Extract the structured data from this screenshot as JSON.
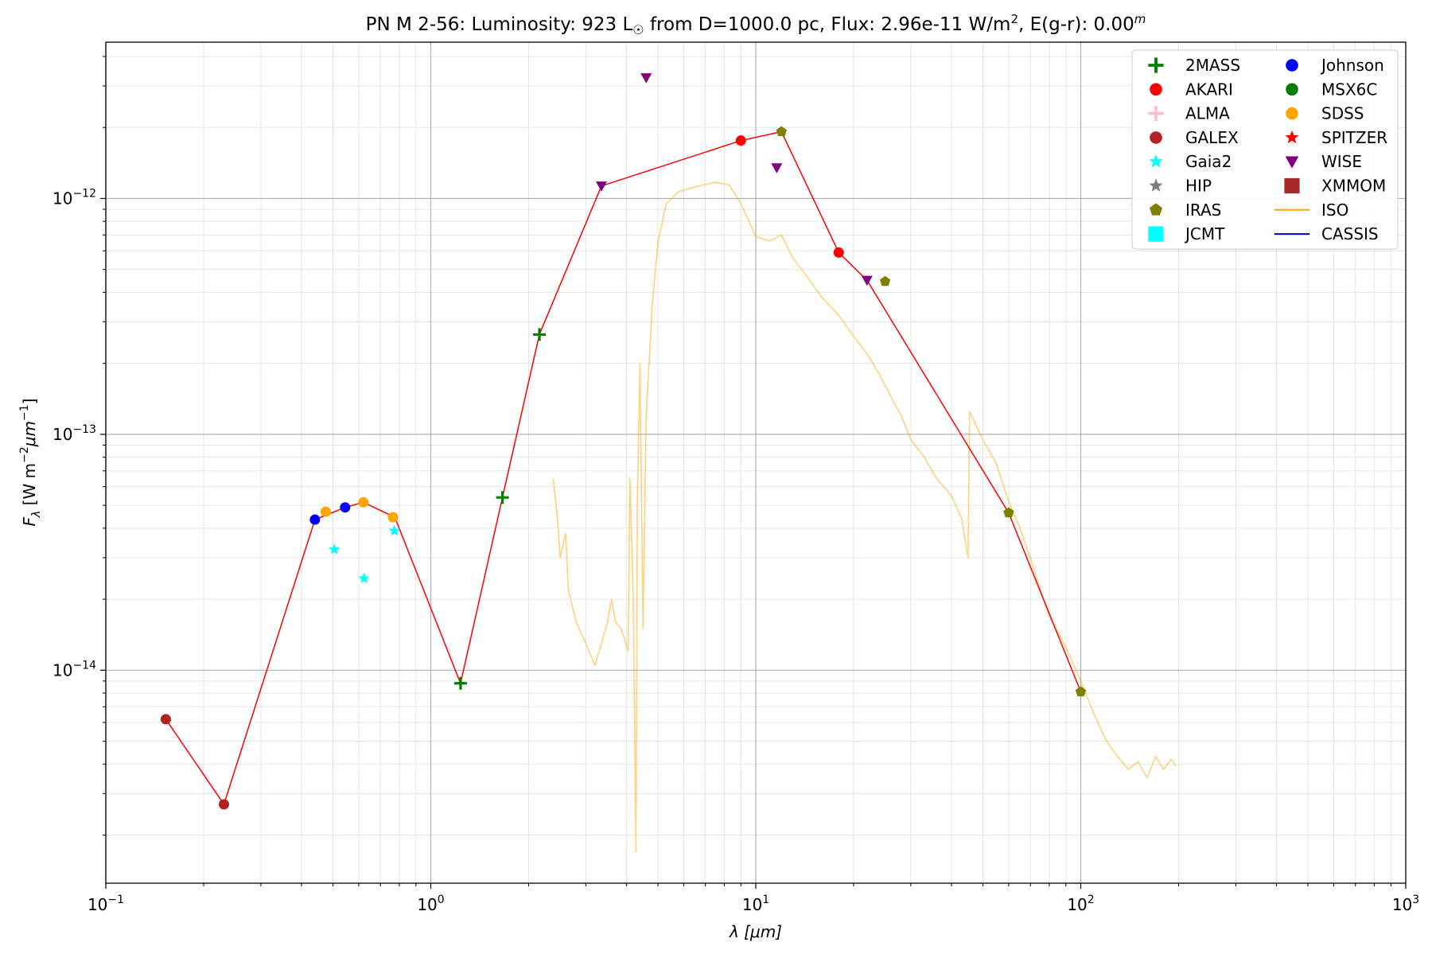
{
  "chart_data": {
    "type": "scatter",
    "title_main": "PN M 2-56:  Luminosity: 923 L",
    "title_sun": "☉",
    "title_flux": " from D=1000.0 pc, Flux: 2.96e-11 W/m",
    "title_sq": "2",
    "title_egr": ", E(g-r): 0.00",
    "title_m": "m",
    "xlabel": "λ [μm]",
    "ylabel": "F_λ [W m^-2 μm^-1]",
    "ylabel_parts": {
      "f": "F",
      "lam": "λ",
      "a": " [W m",
      "e1": "−2",
      "b": "μm",
      "e2": "−1",
      "c": "]"
    },
    "xscale": "log",
    "yscale": "log",
    "xlim": [
      0.1,
      1000
    ],
    "ylim": [
      1.25e-15,
      4.6e-12
    ],
    "grid": true,
    "legend_position": "top-right",
    "x_ticks": [
      {
        "value": 0.1,
        "base": "10",
        "exp": "−1"
      },
      {
        "value": 1,
        "base": "10",
        "exp": "0"
      },
      {
        "value": 10,
        "base": "10",
        "exp": "1"
      },
      {
        "value": 100,
        "base": "10",
        "exp": "2"
      },
      {
        "value": 1000,
        "base": "10",
        "exp": "3"
      }
    ],
    "y_ticks": [
      {
        "value": 1e-14,
        "base": "10",
        "exp": "−14"
      },
      {
        "value": 1e-13,
        "base": "10",
        "exp": "−13"
      },
      {
        "value": 1e-12,
        "base": "10",
        "exp": "−12"
      }
    ],
    "sed_line": {
      "color": "#ff0000",
      "points": [
        [
          0.153,
          6.2e-15
        ],
        [
          0.231,
          2.7e-15
        ],
        [
          0.44,
          4.35e-14
        ],
        [
          0.545,
          4.9e-14
        ],
        [
          0.62,
          5.15e-14
        ],
        [
          0.775,
          4.45e-14
        ],
        [
          1.235,
          8.8e-15
        ],
        [
          1.662,
          5.4e-14
        ],
        [
          2.159,
          2.65e-13
        ],
        [
          3.35,
          1.13e-12
        ],
        [
          9.0,
          1.76e-12
        ],
        [
          12.0,
          1.92e-12
        ],
        [
          18.0,
          5.9e-13
        ],
        [
          22.0,
          4.5e-13
        ],
        [
          60.0,
          4.65e-14
        ],
        [
          100.0,
          8.1e-15
        ]
      ]
    },
    "series": [
      {
        "name": "2MASS",
        "marker": "plus",
        "color": "#008000",
        "points": [
          [
            1.235,
            8.8e-15
          ],
          [
            1.662,
            5.4e-14
          ],
          [
            2.159,
            2.65e-13
          ]
        ]
      },
      {
        "name": "AKARI",
        "marker": "circle",
        "color": "#ff0000",
        "points": [
          [
            9.0,
            1.76e-12
          ],
          [
            18.0,
            5.9e-13
          ]
        ]
      },
      {
        "name": "ALMA",
        "marker": "plus",
        "color": "#ffc0cb",
        "points": []
      },
      {
        "name": "GALEX",
        "marker": "circle",
        "color": "#b22222",
        "points": [
          [
            0.153,
            6.2e-15
          ],
          [
            0.231,
            2.7e-15
          ]
        ]
      },
      {
        "name": "Gaia2",
        "marker": "star",
        "color": "#00ffff",
        "points": [
          [
            0.505,
            3.25e-14
          ],
          [
            0.623,
            2.45e-14
          ],
          [
            0.772,
            3.9e-14
          ]
        ]
      },
      {
        "name": "HIP",
        "marker": "star",
        "color": "#808080",
        "points": []
      },
      {
        "name": "IRAS",
        "marker": "pentagon",
        "color": "#808000",
        "points": [
          [
            12.0,
            1.92e-12
          ],
          [
            25.0,
            4.45e-13
          ],
          [
            60.0,
            4.65e-14
          ],
          [
            100.0,
            8.1e-15
          ]
        ]
      },
      {
        "name": "JCMT",
        "marker": "square",
        "color": "#00ffff",
        "points": []
      },
      {
        "name": "Johnson",
        "marker": "circle",
        "color": "#0000ff",
        "points": [
          [
            0.44,
            4.35e-14
          ],
          [
            0.545,
            4.9e-14
          ]
        ]
      },
      {
        "name": "MSX6C",
        "marker": "circle",
        "color": "#008000",
        "points": []
      },
      {
        "name": "SDSS",
        "marker": "circle",
        "color": "#ffa500",
        "points": [
          [
            0.475,
            4.7e-14
          ],
          [
            0.62,
            5.15e-14
          ],
          [
            0.765,
            4.45e-14
          ]
        ]
      },
      {
        "name": "SPITZER",
        "marker": "star",
        "color": "#ff0000",
        "points": []
      },
      {
        "name": "WISE",
        "marker": "triangle-down",
        "color": "#800080",
        "points": [
          [
            3.35,
            1.13e-12
          ],
          [
            4.6,
            3.25e-12
          ],
          [
            11.6,
            1.35e-12
          ],
          [
            22.0,
            4.5e-13
          ]
        ]
      },
      {
        "name": "XMMOM",
        "marker": "square",
        "color": "#a52a2a",
        "points": []
      },
      {
        "name": "ISO",
        "marker": "line",
        "color": "#ffa500",
        "points": [
          [
            2.38,
            6.5e-14
          ],
          [
            2.45,
            4.5e-14
          ],
          [
            2.5,
            3e-14
          ],
          [
            2.6,
            3.8e-14
          ],
          [
            2.65,
            2.2e-14
          ],
          [
            2.8,
            1.6e-14
          ],
          [
            3.0,
            1.3e-14
          ],
          [
            3.2,
            1.05e-14
          ],
          [
            3.35,
            1.3e-14
          ],
          [
            3.5,
            1.6e-14
          ],
          [
            3.6,
            2e-14
          ],
          [
            3.7,
            1.6e-14
          ],
          [
            3.85,
            1.5e-14
          ],
          [
            3.95,
            1.35e-14
          ],
          [
            4.05,
            1.2e-14
          ],
          [
            4.1,
            6.5e-14
          ],
          [
            4.2,
            2e-14
          ],
          [
            4.28,
            1.7e-15
          ],
          [
            4.32,
            5e-14
          ],
          [
            4.4,
            2e-13
          ],
          [
            4.5,
            1.5e-14
          ],
          [
            4.6,
            1.2e-13
          ],
          [
            4.8,
            3.5e-13
          ],
          [
            5.0,
            6.5e-13
          ],
          [
            5.3,
            9.5e-13
          ],
          [
            5.8,
            1.07e-12
          ],
          [
            6.5,
            1.12e-12
          ],
          [
            7.5,
            1.17e-12
          ],
          [
            8.3,
            1.14e-12
          ],
          [
            9.0,
            9.5e-13
          ],
          [
            10.0,
            6.9e-13
          ],
          [
            11.0,
            6.6e-13
          ],
          [
            12.0,
            7e-13
          ],
          [
            13.0,
            5.6e-13
          ],
          [
            14.0,
            4.9e-13
          ],
          [
            16.0,
            3.8e-13
          ],
          [
            18.0,
            3.2e-13
          ],
          [
            20.0,
            2.6e-13
          ],
          [
            22.0,
            2.2e-13
          ],
          [
            24.0,
            1.8e-13
          ],
          [
            26.0,
            1.45e-13
          ],
          [
            28.0,
            1.2e-13
          ],
          [
            30.0,
            9.5e-14
          ],
          [
            33.0,
            8e-14
          ],
          [
            36.0,
            6.5e-14
          ],
          [
            40.0,
            5.5e-14
          ],
          [
            43.0,
            4.4e-14
          ],
          [
            45.0,
            3e-14
          ],
          [
            45.5,
            1.25e-13
          ],
          [
            50.0,
            9.5e-14
          ],
          [
            55.0,
            7.5e-14
          ],
          [
            60.0,
            5.2e-14
          ],
          [
            65.0,
            4e-14
          ],
          [
            70.0,
            3e-14
          ],
          [
            75.0,
            2.2e-14
          ],
          [
            80.0,
            1.7e-14
          ],
          [
            90.0,
            1.25e-14
          ],
          [
            100.0,
            9e-15
          ],
          [
            110.0,
            6.5e-15
          ],
          [
            120.0,
            5e-15
          ],
          [
            130.0,
            4.3e-15
          ],
          [
            140.0,
            3.8e-15
          ],
          [
            150.0,
            4.1e-15
          ],
          [
            160.0,
            3.5e-15
          ],
          [
            170.0,
            4.3e-15
          ],
          [
            180.0,
            3.8e-15
          ],
          [
            190.0,
            4.2e-15
          ],
          [
            197.0,
            3.9e-15
          ]
        ]
      },
      {
        "name": "CASSIS",
        "marker": "line",
        "color": "#0000cd",
        "points": []
      }
    ]
  }
}
